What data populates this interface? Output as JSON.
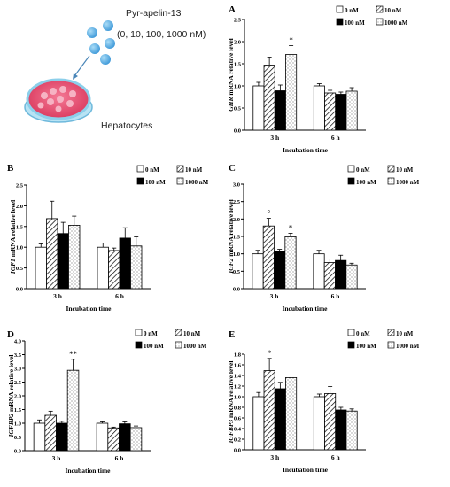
{
  "illustration": {
    "compound_label": "Pyr-apelin-13",
    "concentrations_label": "(0, 10, 100, 1000 nM)",
    "cell_label": "Hepatocytes"
  },
  "colors": {
    "dish_rim": "#7ec8e8",
    "dish_medium": "#e8496e",
    "cells": "#f4a6b8",
    "drops": "#5bb3e8",
    "bar_white": "#ffffff",
    "bar_black": "#000000",
    "bar_stroke": "#000000"
  },
  "chart_data": [
    {
      "id": "A",
      "type": "bar",
      "panel_letter": "A",
      "ylabel_gene": "GHR",
      "ylabel_rest": " mRNA relative level",
      "xlabel": "Incubation time",
      "categories": [
        "3 h",
        "6 h"
      ],
      "ylim": [
        0,
        2.5
      ],
      "yticks": [
        "0.0",
        "0.5",
        "1.0",
        "1.5",
        "2.0",
        "2.5"
      ],
      "series": [
        {
          "name": "0 nM",
          "pattern": "white",
          "values": [
            1.0,
            1.0
          ],
          "errors": [
            0.08,
            0.05
          ]
        },
        {
          "name": "10 nM",
          "pattern": "hatch",
          "values": [
            1.47,
            0.84
          ],
          "errors": [
            0.18,
            0.06
          ]
        },
        {
          "name": "100 nM",
          "pattern": "black",
          "values": [
            0.89,
            0.81
          ],
          "errors": [
            0.13,
            0.05
          ]
        },
        {
          "name": "1000 nM",
          "pattern": "dots",
          "values": [
            1.71,
            0.88
          ],
          "errors": [
            0.2,
            0.08
          ]
        }
      ],
      "annotations": [
        {
          "category": 0,
          "series": 3,
          "text": "*"
        }
      ]
    },
    {
      "id": "B",
      "type": "bar",
      "panel_letter": "B",
      "ylabel_gene": "IGF1",
      "ylabel_rest": " mRNA relative level",
      "xlabel": "Incubation time",
      "categories": [
        "3 h",
        "6 h"
      ],
      "ylim": [
        0,
        2.5
      ],
      "yticks": [
        "0.0",
        "0.5",
        "1.0",
        "1.5",
        "2.0",
        "2.5"
      ],
      "series": [
        {
          "name": "0 nM",
          "pattern": "white",
          "values": [
            1.0,
            1.0
          ],
          "errors": [
            0.08,
            0.1
          ]
        },
        {
          "name": "10 nM",
          "pattern": "hatch",
          "values": [
            1.69,
            0.92
          ],
          "errors": [
            0.42,
            0.06
          ]
        },
        {
          "name": "100 nM",
          "pattern": "black",
          "values": [
            1.33,
            1.22
          ],
          "errors": [
            0.27,
            0.25
          ]
        },
        {
          "name": "1000 nM",
          "pattern": "dots",
          "values": [
            1.53,
            1.03
          ],
          "errors": [
            0.22,
            0.22
          ]
        }
      ],
      "annotations": []
    },
    {
      "id": "C",
      "type": "bar",
      "panel_letter": "C",
      "ylabel_gene": "IGF2",
      "ylabel_rest": " mRNA relative level",
      "xlabel": "Incubation time",
      "categories": [
        "3 h",
        "6 h"
      ],
      "ylim": [
        0,
        3.0
      ],
      "yticks": [
        "0.0",
        "0.5",
        "1.0",
        "1.5",
        "2.0",
        "2.5",
        "3.0"
      ],
      "series": [
        {
          "name": "0 nM",
          "pattern": "white",
          "values": [
            1.0,
            1.0
          ],
          "errors": [
            0.1,
            0.1
          ]
        },
        {
          "name": "10 nM",
          "pattern": "hatch",
          "values": [
            1.8,
            0.75
          ],
          "errors": [
            0.22,
            0.1
          ]
        },
        {
          "name": "100 nM",
          "pattern": "black",
          "values": [
            1.07,
            0.81
          ],
          "errors": [
            0.06,
            0.15
          ]
        },
        {
          "name": "1000 nM",
          "pattern": "dots",
          "values": [
            1.49,
            0.68
          ],
          "errors": [
            0.1,
            0.05
          ]
        }
      ],
      "annotations": [
        {
          "category": 0,
          "series": 1,
          "text": "°"
        },
        {
          "category": 0,
          "series": 3,
          "text": "*"
        }
      ]
    },
    {
      "id": "D",
      "type": "bar",
      "panel_letter": "D",
      "ylabel_gene": "IGFBP2",
      "ylabel_rest": " mRNA relative  level",
      "xlabel": "Incubation time",
      "categories": [
        "3 h",
        "6 h"
      ],
      "ylim": [
        0,
        4.0
      ],
      "yticks": [
        "0.0",
        "0.5",
        "1.0",
        "1.5",
        "2.0",
        "2.5",
        "3.0",
        "3.5",
        "4.0"
      ],
      "series": [
        {
          "name": "0 nM",
          "pattern": "white",
          "values": [
            1.0,
            1.0
          ],
          "errors": [
            0.12,
            0.05
          ]
        },
        {
          "name": "10 nM",
          "pattern": "hatch",
          "values": [
            1.29,
            0.83
          ],
          "errors": [
            0.15,
            0.03
          ]
        },
        {
          "name": "100 nM",
          "pattern": "black",
          "values": [
            1.0,
            0.98
          ],
          "errors": [
            0.07,
            0.07
          ]
        },
        {
          "name": "1000 nM",
          "pattern": "dots",
          "values": [
            2.93,
            0.84
          ],
          "errors": [
            0.4,
            0.06
          ]
        }
      ],
      "annotations": [
        {
          "category": 0,
          "series": 3,
          "text": "**"
        }
      ]
    },
    {
      "id": "E",
      "type": "bar",
      "panel_letter": "E",
      "ylabel_gene": "IGFBP3",
      "ylabel_rest": " mRNA relative level",
      "xlabel": "Incubation time",
      "categories": [
        "3 h",
        "6 h"
      ],
      "ylim": [
        0,
        1.8
      ],
      "yticks": [
        "0.0",
        "0.2",
        "0.4",
        "0.6",
        "0.8",
        "1.0",
        "1.2",
        "1.4",
        "1.6",
        "1.8"
      ],
      "series": [
        {
          "name": "0 nM",
          "pattern": "white",
          "values": [
            1.0,
            1.0
          ],
          "errors": [
            0.08,
            0.05
          ]
        },
        {
          "name": "10 nM",
          "pattern": "hatch",
          "values": [
            1.49,
            1.06
          ],
          "errors": [
            0.23,
            0.13
          ]
        },
        {
          "name": "100 nM",
          "pattern": "black",
          "values": [
            1.15,
            0.75
          ],
          "errors": [
            0.12,
            0.05
          ]
        },
        {
          "name": "1000 nM",
          "pattern": "dots",
          "values": [
            1.36,
            0.73
          ],
          "errors": [
            0.05,
            0.04
          ]
        }
      ],
      "annotations": [
        {
          "category": 0,
          "series": 1,
          "text": "*"
        }
      ]
    }
  ]
}
